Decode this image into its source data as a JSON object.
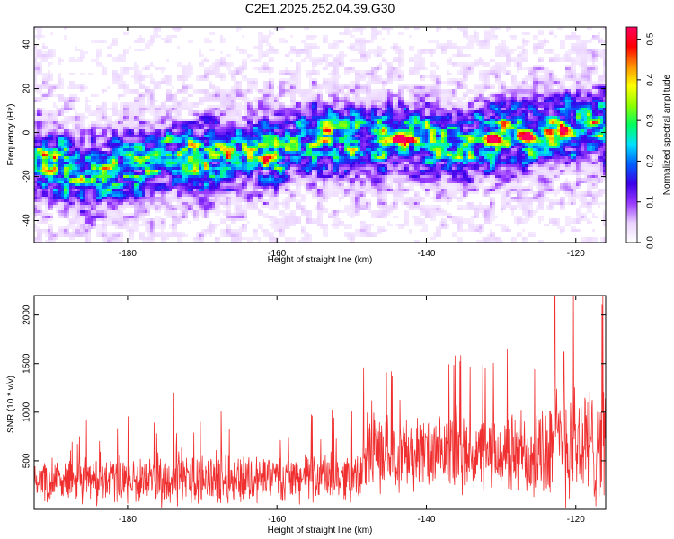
{
  "title": "C2E1.2025.252.04.39.G30",
  "chart_data": [
    {
      "type": "heatmap",
      "name": "spectrogram",
      "xlabel": "Height of straight line (km)",
      "ylabel": "Frequency (Hz)",
      "xlim": [
        -192.5,
        -116
      ],
      "ylim": [
        -50,
        48
      ],
      "xticks": [
        "-180",
        "-160",
        "-140",
        "-120"
      ],
      "xtick_values": [
        -180,
        -160,
        -140,
        -120
      ],
      "yticks": [
        "-40",
        "-20",
        "0",
        "20",
        "40"
      ],
      "ytick_values": [
        -40,
        -20,
        0,
        20,
        40
      ],
      "ridge": {
        "x": [
          -192,
          -186,
          -180,
          -175,
          -170,
          -165,
          -160,
          -155,
          -150,
          -145,
          -140,
          -135,
          -130,
          -125,
          -120,
          -116
        ],
        "y": [
          -12,
          -20,
          -15,
          -12,
          -12,
          -10,
          -8,
          -3,
          -4,
          -3,
          -4,
          -7,
          -2,
          -1,
          1,
          3
        ]
      },
      "peaks": [
        {
          "x": -143.5,
          "y": -3,
          "amp": 0.38
        },
        {
          "x": -131,
          "y": -3,
          "amp": 0.5
        },
        {
          "x": -126.5,
          "y": -2,
          "amp": 0.52
        },
        {
          "x": -121.5,
          "y": 1,
          "amp": 0.32
        },
        {
          "x": -161,
          "y": -11,
          "amp": 0.3
        },
        {
          "x": -145.5,
          "y": -4,
          "amp": 0.24
        }
      ],
      "colorbar": {
        "label": "Normalized spectral amplitude",
        "range": [
          0.0,
          0.53
        ],
        "ticks": [
          "0.0",
          "0.1",
          "0.2",
          "0.3",
          "0.4",
          "0.5"
        ],
        "tick_values": [
          0.0,
          0.1,
          0.2,
          0.3,
          0.4,
          0.5
        ],
        "colors": [
          "#ffffff",
          "#ead2ff",
          "#9a3cff",
          "#3c00e8",
          "#0060ff",
          "#00e0ff",
          "#00ff60",
          "#90ff00",
          "#ffff00",
          "#ff9000",
          "#ff0000",
          "#ff0060"
        ]
      }
    },
    {
      "type": "line",
      "name": "snr",
      "xlabel": "Height of straight line (km)",
      "ylabel": "SNR (10 * v/v)",
      "xlim": [
        -192.5,
        -116
      ],
      "ylim": [
        0,
        2200
      ],
      "xticks": [
        "-180",
        "-160",
        "-140",
        "-120"
      ],
      "xtick_values": [
        -180,
        -160,
        -140,
        -120
      ],
      "yticks": [
        "500",
        "1000",
        "1500",
        "2000"
      ],
      "ytick_values": [
        500,
        1000,
        1500,
        2000
      ],
      "color": "#f03030",
      "envelope": {
        "x": [
          -192.5,
          -185,
          -175,
          -165,
          -155,
          -148.5,
          -148,
          -140,
          -130,
          -125,
          -121,
          -118,
          -116
        ],
        "mean": [
          300,
          300,
          310,
          320,
          330,
          340,
          600,
          560,
          560,
          600,
          700,
          650,
          700
        ],
        "spread": [
          200,
          230,
          250,
          250,
          230,
          230,
          380,
          350,
          370,
          500,
          650,
          600,
          620
        ]
      },
      "spikes": [
        {
          "x": -173.8,
          "y": 1200
        },
        {
          "x": -148.4,
          "y": 1450
        },
        {
          "x": -135.5,
          "y": 1520
        },
        {
          "x": -125.5,
          "y": 1440
        },
        {
          "x": -122.8,
          "y": 2200
        },
        {
          "x": -121.6,
          "y": 1620
        },
        {
          "x": -116.5,
          "y": 2110
        }
      ]
    }
  ]
}
